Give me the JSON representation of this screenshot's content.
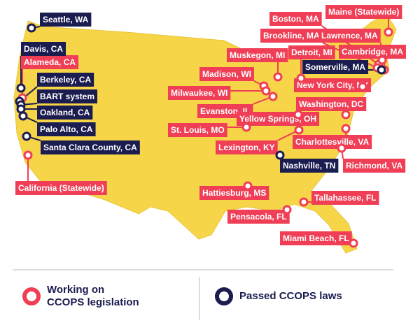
{
  "groups": [
    {
      "color": "#ef3e55",
      "legend": [
        "Working on",
        "CCOPS legislation"
      ],
      "places": [
        "Alameda, CA",
        "California (Statewide)",
        "Maine (Statewide)",
        "Boston, MA",
        "Brookline, MA",
        "Lawrence, MA",
        "Muskegon, MI",
        "Detroit, MI",
        "Cambridge, MA",
        "Madison, WI",
        "New York City, NY",
        "Milwaukee, WI",
        "Evanston, IL",
        "Yellow Springs, OH",
        "Washington, DC",
        "St. Louis, MO",
        "Lexington, KY",
        "Charlottesville, VA",
        "Richmond, VA",
        "Hattiesburg, MS",
        "Tallahassee, FL",
        "Pensacola, FL",
        "Miami Beach, FL"
      ]
    },
    {
      "color": "#1b1c4f",
      "legend": [
        "Passed CCOPS laws"
      ],
      "places": [
        "Seattle, WA",
        "Davis, CA",
        "Berkeley, CA",
        "BART system",
        "Oakland, CA",
        "Palo Alto, CA",
        "Santa Clara County, CA",
        "Nashville, TN",
        "Somerville, MA"
      ]
    }
  ]
}
